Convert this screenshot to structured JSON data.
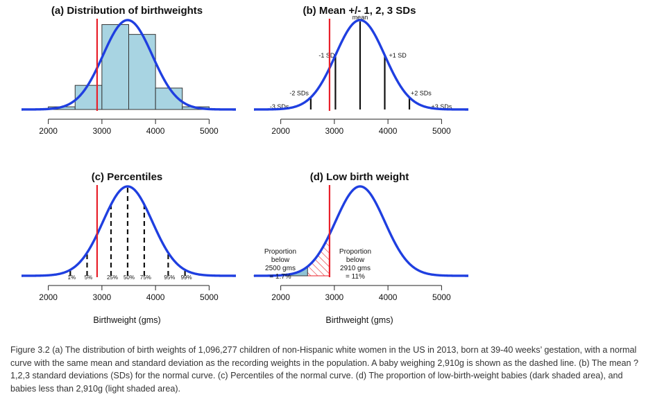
{
  "chart_data": [
    {
      "id": "a",
      "type": "histogram",
      "title": "(a) Distribution of birthweights",
      "xlim": [
        1500,
        5500
      ],
      "xticks": [
        2000,
        3000,
        4000,
        5000
      ],
      "xlabel": "",
      "mean": 3480,
      "sd": 460,
      "bins": [
        {
          "from": 2000,
          "to": 2500,
          "density": 0.03
        },
        {
          "from": 2500,
          "to": 3000,
          "density": 0.27
        },
        {
          "from": 3000,
          "to": 3500,
          "density": 0.95
        },
        {
          "from": 3500,
          "to": 4000,
          "density": 0.84
        },
        {
          "from": 4000,
          "to": 4500,
          "density": 0.24
        },
        {
          "from": 4500,
          "to": 5000,
          "density": 0.03
        }
      ],
      "marker_line": 2910
    },
    {
      "id": "b",
      "type": "line",
      "title": "(b) Mean +/- 1, 2, 3 SDs",
      "xlim": [
        1500,
        5500
      ],
      "xticks": [
        2000,
        3000,
        4000,
        5000
      ],
      "xlabel": "",
      "mean": 3480,
      "sd": 460,
      "marker_line": 2910,
      "sd_lines": [
        {
          "k": -3,
          "label": "-3 SDs"
        },
        {
          "k": -2,
          "label": "-2 SDs"
        },
        {
          "k": -1,
          "label": "-1 SD"
        },
        {
          "k": 0,
          "label": "mean"
        },
        {
          "k": 1,
          "label": "+1 SD"
        },
        {
          "k": 2,
          "label": "+2 SDs"
        },
        {
          "k": 3,
          "label": "+3 SDs"
        }
      ]
    },
    {
      "id": "c",
      "type": "line",
      "title": "(c) Percentiles",
      "xlim": [
        1500,
        5500
      ],
      "xticks": [
        2000,
        3000,
        4000,
        5000
      ],
      "xlabel": "Birthweight (gms)",
      "mean": 3480,
      "sd": 460,
      "marker_line": 2910,
      "percentiles": [
        {
          "z": -2.326,
          "label": "1%"
        },
        {
          "z": -1.645,
          "label": "5%"
        },
        {
          "z": -0.674,
          "label": "25%"
        },
        {
          "z": 0,
          "label": "50%"
        },
        {
          "z": 0.674,
          "label": "75%"
        },
        {
          "z": 1.645,
          "label": "95%"
        },
        {
          "z": 2.326,
          "label": "99%"
        }
      ]
    },
    {
      "id": "d",
      "type": "area",
      "title": "(d) Low birth weight",
      "xlim": [
        1500,
        5500
      ],
      "xticks": [
        2000,
        3000,
        4000,
        5000
      ],
      "xlabel": "Birthweight (gms)",
      "mean": 3480,
      "sd": 460,
      "marker_line": 2910,
      "shaded_below": 2500,
      "hatched_below": 2910,
      "annotation_left": [
        "Proportion",
        "below",
        "2500 gms",
        "= 1.7%"
      ],
      "annotation_right": [
        "Proportion",
        "below",
        "2910 gms",
        "= 11%"
      ]
    }
  ],
  "colors": {
    "curve": "#1f3fe0",
    "marker": "#e8202a",
    "histogram_fill": "#a8d4e2",
    "dark_shade": "#8fc3d4",
    "axis": "#222222"
  },
  "caption": "Figure 3.2 (a) The distribution of birth weights of 1,096,277 children of non-Hispanic white women in the US in 2013, born at 39-40 weeks’ gestation, with a normal curve with the same mean and standard deviation as the recording weights in the population. A baby weighing 2,910g is shown as the dashed line. (b) The mean ?1,2,3 standard deviations (SDs) for the normal curve. (c) Percentiles of the normal curve. (d) The proportion of low-birth-weight babies (dark shaded area), and babies less than 2,910g (light shaded area)."
}
